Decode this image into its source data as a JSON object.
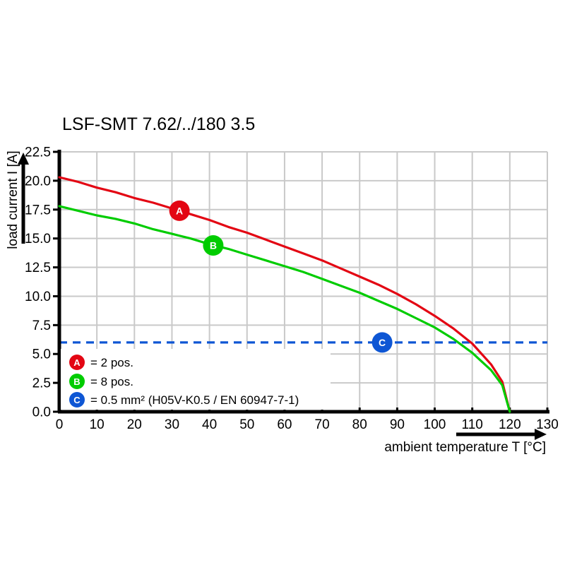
{
  "title": "LSF-SMT 7.62/../180 3.5",
  "colors": {
    "series_a": "#e30613",
    "series_b": "#00cc00",
    "limit_c": "#0e56d4",
    "grid": "#c9c9c9",
    "axis": "#000000",
    "background": "#ffffff"
  },
  "chart_data": {
    "type": "line",
    "title": "LSF-SMT 7.62/../180 3.5",
    "xlabel": "ambient temperature T [°C]",
    "ylabel": "load current I [A]",
    "xlim": [
      0,
      130
    ],
    "ylim": [
      0,
      22.5
    ],
    "x_tick_labels": [
      "0",
      "10",
      "20",
      "30",
      "40",
      "50",
      "60",
      "70",
      "80",
      "90",
      "100",
      "110",
      "120",
      "130"
    ],
    "y_tick_labels": [
      "0.0",
      "2.5",
      "5.0",
      "7.5",
      "10.0",
      "12.5",
      "15.0",
      "17.5",
      "20.0",
      "22.5"
    ],
    "grid": true,
    "legend_position": "lower-left",
    "series": [
      {
        "name": "A",
        "label": "= 2 pos.",
        "color": "#e30613",
        "x": [
          0,
          5,
          10,
          15,
          20,
          25,
          30,
          35,
          40,
          45,
          50,
          55,
          60,
          65,
          70,
          75,
          80,
          85,
          90,
          95,
          100,
          105,
          110,
          115,
          118,
          120
        ],
        "y": [
          20.3,
          19.9,
          19.4,
          19.0,
          18.5,
          18.1,
          17.6,
          17.1,
          16.6,
          16.0,
          15.5,
          14.9,
          14.3,
          13.7,
          13.1,
          12.4,
          11.7,
          11.0,
          10.2,
          9.3,
          8.3,
          7.2,
          5.9,
          4.1,
          2.6,
          0
        ],
        "marker": {
          "letter": "A",
          "x": 32,
          "y": 17.4
        }
      },
      {
        "name": "B",
        "label": "= 8 pos.",
        "color": "#00cc00",
        "x": [
          0,
          5,
          10,
          15,
          20,
          25,
          30,
          35,
          40,
          45,
          50,
          55,
          60,
          65,
          70,
          75,
          80,
          85,
          90,
          95,
          100,
          105,
          110,
          115,
          118,
          120
        ],
        "y": [
          17.8,
          17.4,
          17.0,
          16.7,
          16.3,
          15.8,
          15.4,
          15.0,
          14.5,
          14.1,
          13.6,
          13.1,
          12.6,
          12.1,
          11.5,
          10.9,
          10.3,
          9.6,
          8.9,
          8.1,
          7.3,
          6.3,
          5.1,
          3.6,
          2.3,
          0
        ],
        "marker": {
          "letter": "B",
          "x": 41,
          "y": 14.4
        }
      }
    ],
    "limit_line": {
      "name": "C",
      "label": "= 0.5 mm² (H05V-K0.5 / EN 60947-7-1)",
      "color": "#0e56d4",
      "y": 6.0,
      "style": "dashed",
      "marker": {
        "letter": "C",
        "x": 86,
        "y": 6.0
      }
    }
  }
}
